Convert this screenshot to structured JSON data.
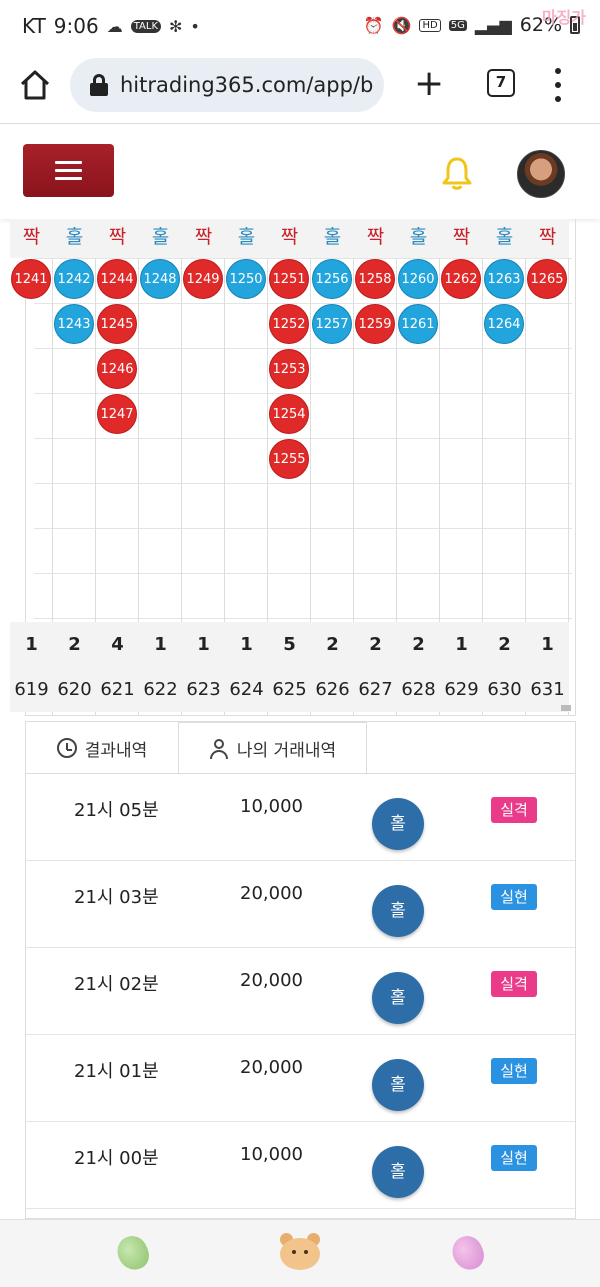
{
  "status_bar": {
    "carrier": "KT",
    "time": "9:06",
    "talk_badge": "TALK",
    "hd_badge": "HD",
    "network_badge": "5G",
    "battery": "62%",
    "watermark": "마징가"
  },
  "browser": {
    "url": "hitrading365.com/app/b",
    "tab_count": "7",
    "new_tab_label": "+"
  },
  "board": {
    "columns": [
      {
        "header": "짝",
        "type": "even",
        "balls": [
          "1241"
        ],
        "count": "1",
        "round": "619"
      },
      {
        "header": "홀",
        "type": "odd",
        "balls": [
          "1242",
          "1243"
        ],
        "count": "2",
        "round": "620"
      },
      {
        "header": "짝",
        "type": "even",
        "balls": [
          "1244",
          "1245",
          "1246",
          "1247"
        ],
        "count": "4",
        "round": "621"
      },
      {
        "header": "홀",
        "type": "odd",
        "balls": [
          "1248"
        ],
        "count": "1",
        "round": "622"
      },
      {
        "header": "짝",
        "type": "even",
        "balls": [
          "1249"
        ],
        "count": "1",
        "round": "623"
      },
      {
        "header": "홀",
        "type": "odd",
        "balls": [
          "1250"
        ],
        "count": "1",
        "round": "624"
      },
      {
        "header": "짝",
        "type": "even",
        "balls": [
          "1251",
          "1252",
          "1253",
          "1254",
          "1255"
        ],
        "count": "5",
        "round": "625"
      },
      {
        "header": "홀",
        "type": "odd",
        "balls": [
          "1256",
          "1257"
        ],
        "count": "2",
        "round": "626"
      },
      {
        "header": "짝",
        "type": "even",
        "balls": [
          "1258",
          "1259"
        ],
        "count": "2",
        "round": "627"
      },
      {
        "header": "홀",
        "type": "odd",
        "balls": [
          "1260",
          "1261"
        ],
        "count": "2",
        "round": "628"
      },
      {
        "header": "짝",
        "type": "even",
        "balls": [
          "1262"
        ],
        "count": "1",
        "round": "629"
      },
      {
        "header": "홀",
        "type": "odd",
        "balls": [
          "1263",
          "1264"
        ],
        "count": "2",
        "round": "630"
      },
      {
        "header": "짝",
        "type": "even",
        "balls": [
          "1265"
        ],
        "count": "1",
        "round": "631"
      }
    ],
    "colors": {
      "even": "#e02a2a",
      "odd": "#22a4dc"
    }
  },
  "tabs": [
    {
      "label": "결과내역",
      "icon": "history-icon"
    },
    {
      "label": "나의 거래내역",
      "icon": "user-icon"
    }
  ],
  "history": [
    {
      "time": "21시 05분",
      "amount": "10,000",
      "pick": "홀",
      "status": "실격",
      "result": "lose"
    },
    {
      "time": "21시 03분",
      "amount": "20,000",
      "pick": "홀",
      "status": "실현",
      "result": "win"
    },
    {
      "time": "21시 02분",
      "amount": "20,000",
      "pick": "홀",
      "status": "실격",
      "result": "lose"
    },
    {
      "time": "21시 01분",
      "amount": "20,000",
      "pick": "홀",
      "status": "실현",
      "result": "win"
    },
    {
      "time": "21시 00분",
      "amount": "10,000",
      "pick": "홀",
      "status": "실현",
      "result": "win"
    }
  ]
}
